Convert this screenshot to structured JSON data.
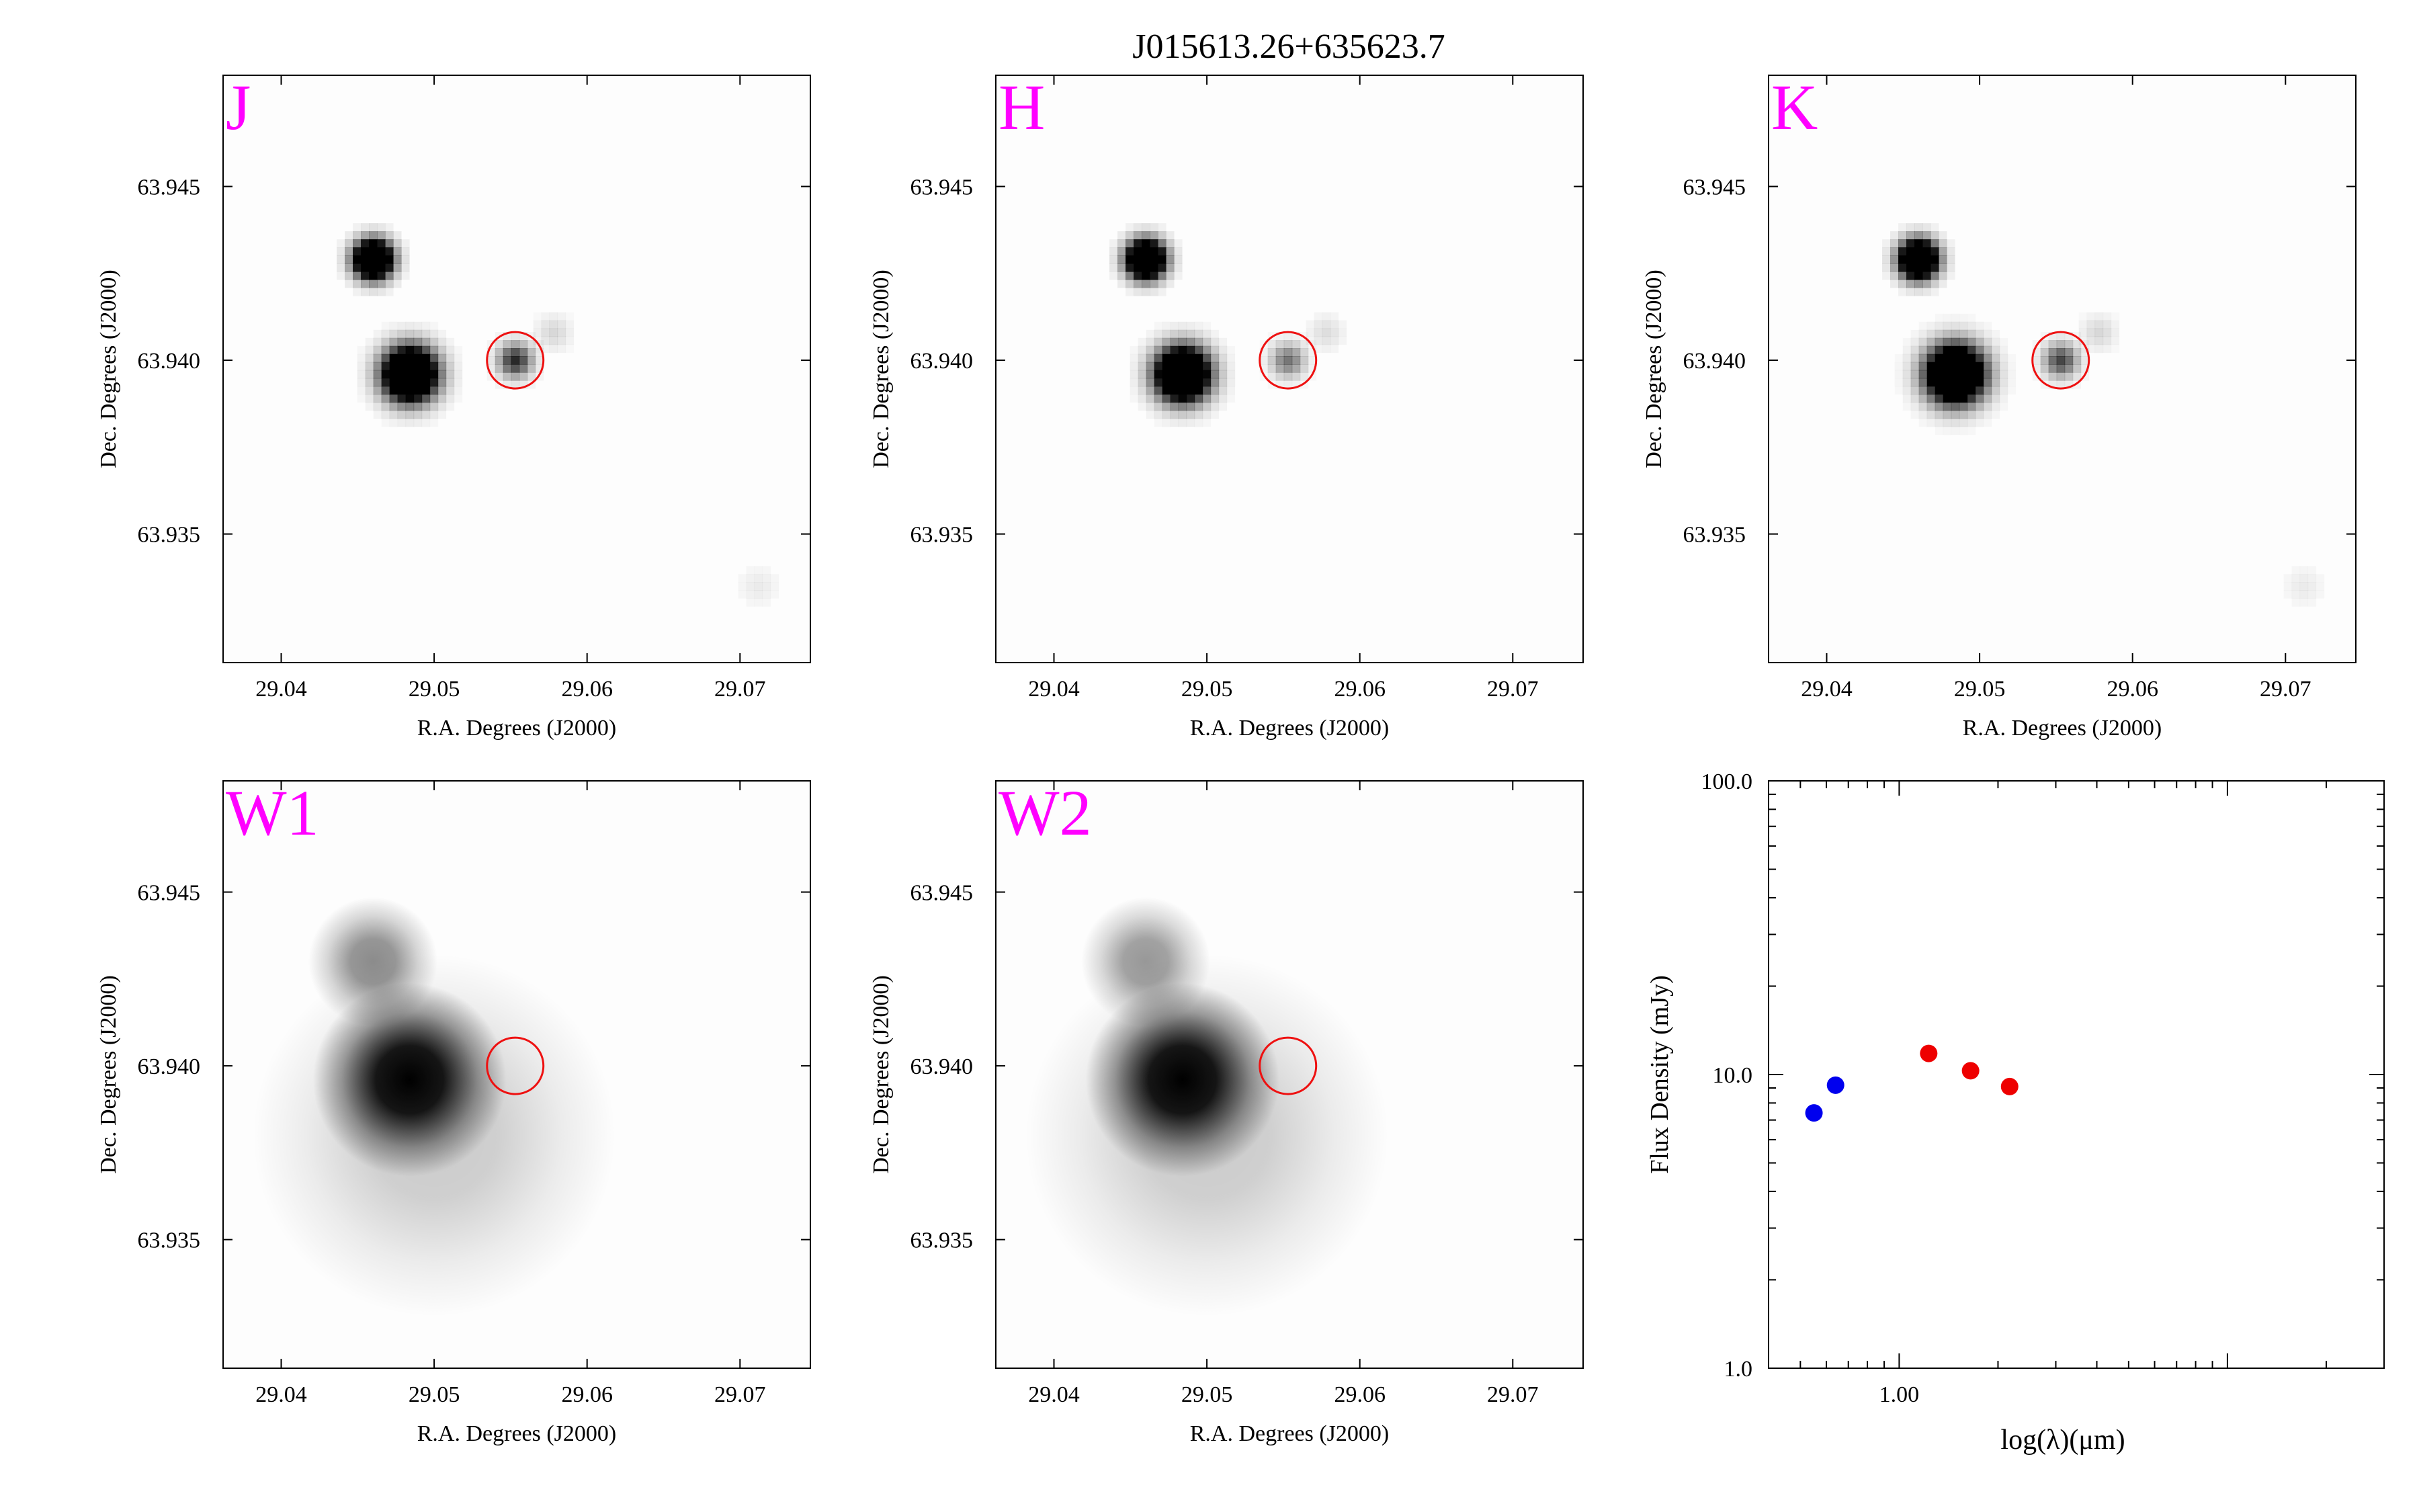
{
  "title": "J015613.26+635623.7",
  "colors": {
    "band_label": "#ff00ff",
    "aperture": "#ee1111",
    "sed_blue": "#0000ee",
    "sed_red": "#ee0000",
    "source": "#000000"
  },
  "chart_data": [
    {
      "type": "heatmap",
      "band": "J",
      "xlabel": "R.A. Degrees (J2000)",
      "ylabel": "Dec. Degrees (J2000)",
      "xticks": [
        29.04,
        29.05,
        29.06,
        29.07
      ],
      "xtick_labels": [
        "29.04",
        "29.05",
        "29.06",
        "29.07"
      ],
      "yticks": [
        63.935,
        63.94,
        63.945
      ],
      "ytick_labels": [
        "63.935",
        "63.940",
        "63.945"
      ],
      "xlim": [
        29.0362,
        29.0746
      ],
      "ylim": [
        63.9313,
        63.9482
      ],
      "sources": [
        {
          "ra": 29.046,
          "dec": 63.9429,
          "flux": 1.0,
          "size": 1.0
        },
        {
          "ra": 29.0484,
          "dec": 63.9396,
          "flux": 1.0,
          "size": 1.4
        },
        {
          "ra": 29.0553,
          "dec": 63.94,
          "flux": 0.35,
          "size": 0.9
        },
        {
          "ra": 29.0578,
          "dec": 63.9408,
          "flux": 0.06,
          "size": 0.9
        },
        {
          "ra": 29.0712,
          "dec": 63.9335,
          "flux": 0.03,
          "size": 1.0
        }
      ],
      "target": {
        "ra": 29.0553,
        "dec": 63.94
      }
    },
    {
      "type": "heatmap",
      "band": "H",
      "xlabel": "R.A. Degrees (J2000)",
      "ylabel": "Dec. Degrees (J2000)",
      "xticks": [
        29.04,
        29.05,
        29.06,
        29.07
      ],
      "xtick_labels": [
        "29.04",
        "29.05",
        "29.06",
        "29.07"
      ],
      "yticks": [
        63.935,
        63.94,
        63.945
      ],
      "ytick_labels": [
        "63.935",
        "63.940",
        "63.945"
      ],
      "xlim": [
        29.0362,
        29.0746
      ],
      "ylim": [
        63.9313,
        63.9482
      ],
      "sources": [
        {
          "ra": 29.046,
          "dec": 63.9429,
          "flux": 1.0,
          "size": 1.0
        },
        {
          "ra": 29.0484,
          "dec": 63.9396,
          "flux": 1.0,
          "size": 1.4
        },
        {
          "ra": 29.0553,
          "dec": 63.94,
          "flux": 0.22,
          "size": 0.9
        },
        {
          "ra": 29.0578,
          "dec": 63.9408,
          "flux": 0.05,
          "size": 0.9
        }
      ],
      "target": {
        "ra": 29.0553,
        "dec": 63.94
      }
    },
    {
      "type": "heatmap",
      "band": "K",
      "xlabel": "R.A. Degrees (J2000)",
      "ylabel": "Dec. Degrees (J2000)",
      "xticks": [
        29.04,
        29.05,
        29.06,
        29.07
      ],
      "xtick_labels": [
        "29.04",
        "29.05",
        "29.06",
        "29.07"
      ],
      "yticks": [
        63.935,
        63.94,
        63.945
      ],
      "ytick_labels": [
        "63.935",
        "63.940",
        "63.945"
      ],
      "xlim": [
        29.0362,
        29.0746
      ],
      "ylim": [
        63.9313,
        63.9482
      ],
      "sources": [
        {
          "ra": 29.046,
          "dec": 63.9429,
          "flux": 1.0,
          "size": 1.0
        },
        {
          "ra": 29.0484,
          "dec": 63.9396,
          "flux": 1.0,
          "size": 1.5
        },
        {
          "ra": 29.0553,
          "dec": 63.94,
          "flux": 0.3,
          "size": 0.9
        },
        {
          "ra": 29.0578,
          "dec": 63.9408,
          "flux": 0.06,
          "size": 0.9
        },
        {
          "ra": 29.0712,
          "dec": 63.9335,
          "flux": 0.03,
          "size": 1.0
        }
      ],
      "target": {
        "ra": 29.0553,
        "dec": 63.94
      }
    },
    {
      "type": "heatmap",
      "band": "W1",
      "xlabel": "R.A. Degrees (J2000)",
      "ylabel": "Dec. Degrees (J2000)",
      "xticks": [
        29.04,
        29.05,
        29.06,
        29.07
      ],
      "xtick_labels": [
        "29.04",
        "29.05",
        "29.06",
        "29.07"
      ],
      "yticks": [
        63.935,
        63.94,
        63.945
      ],
      "ytick_labels": [
        "63.935",
        "63.940",
        "63.945"
      ],
      "xlim": [
        29.0362,
        29.0746
      ],
      "ylim": [
        63.9313,
        63.9482
      ],
      "sources": [
        {
          "ra": 29.046,
          "dec": 63.943,
          "flux": 0.45,
          "size": 3.2
        },
        {
          "ra": 29.0484,
          "dec": 63.9396,
          "flux": 1.0,
          "size": 4.8
        },
        {
          "ra": 29.05,
          "dec": 63.938,
          "flux": 0.2,
          "size": 9.0
        }
      ],
      "target": {
        "ra": 29.0553,
        "dec": 63.94
      }
    },
    {
      "type": "heatmap",
      "band": "W2",
      "xlabel": "R.A. Degrees (J2000)",
      "ylabel": "Dec. Degrees (J2000)",
      "xticks": [
        29.04,
        29.05,
        29.06,
        29.07
      ],
      "xtick_labels": [
        "29.04",
        "29.05",
        "29.06",
        "29.07"
      ],
      "yticks": [
        63.935,
        63.94,
        63.945
      ],
      "ytick_labels": [
        "63.935",
        "63.940",
        "63.945"
      ],
      "xlim": [
        29.0362,
        29.0746
      ],
      "ylim": [
        63.9313,
        63.9482
      ],
      "sources": [
        {
          "ra": 29.046,
          "dec": 63.943,
          "flux": 0.4,
          "size": 3.2
        },
        {
          "ra": 29.0484,
          "dec": 63.9396,
          "flux": 1.0,
          "size": 4.8
        },
        {
          "ra": 29.05,
          "dec": 63.938,
          "flux": 0.2,
          "size": 9.0
        }
      ],
      "target": {
        "ra": 29.0553,
        "dec": 63.94
      }
    },
    {
      "type": "scatter",
      "xlabel": "log(λ)(μm)",
      "ylabel": "Flux Density (mJy)",
      "xscale": "log",
      "yscale": "log",
      "xlim": [
        0.4,
        30
      ],
      "ylim": [
        1,
        100
      ],
      "ytick_labels": [
        "1.0",
        "10.0",
        "100.0"
      ],
      "xtick_labels": [
        "1.00"
      ],
      "series": [
        {
          "color": "#0000ee",
          "x": [
            0.55,
            0.64
          ],
          "y": [
            7.4,
            9.2
          ]
        },
        {
          "color": "#ee0000",
          "x": [
            1.23,
            1.65,
            2.17
          ],
          "y": [
            11.8,
            10.3,
            9.1
          ]
        }
      ]
    }
  ]
}
